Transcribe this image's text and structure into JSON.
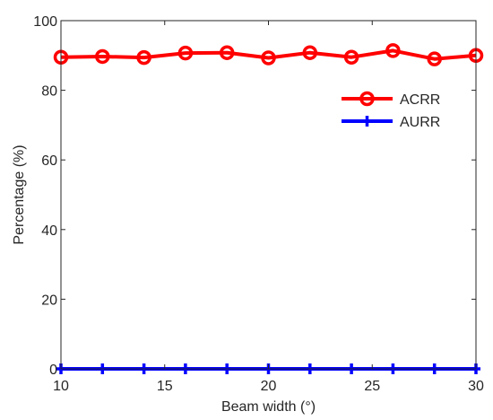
{
  "chart_data": {
    "type": "line",
    "title": "",
    "xlabel": "Beam width (°)",
    "ylabel": "Percentage (%)",
    "xlim": [
      10,
      30
    ],
    "ylim": [
      0,
      100
    ],
    "x_ticks": [
      "10",
      "15",
      "20",
      "25",
      "30"
    ],
    "y_ticks": [
      "0",
      "20",
      "40",
      "60",
      "80",
      "100"
    ],
    "grid": false,
    "legend_position": "top-right",
    "x": [
      10,
      12,
      14,
      16,
      18,
      20,
      22,
      24,
      26,
      28,
      30
    ],
    "series": [
      {
        "name": "ACRR",
        "color": "#ff0000",
        "marker": "circle",
        "values": [
          89.5,
          89.7,
          89.4,
          90.7,
          90.8,
          89.3,
          90.8,
          89.5,
          91.4,
          89.0,
          90.0
        ]
      },
      {
        "name": "AURR",
        "color": "#0000ff",
        "marker": "plus",
        "values": [
          0,
          0,
          0,
          0,
          0,
          0,
          0,
          0,
          0,
          0,
          0
        ]
      }
    ]
  }
}
